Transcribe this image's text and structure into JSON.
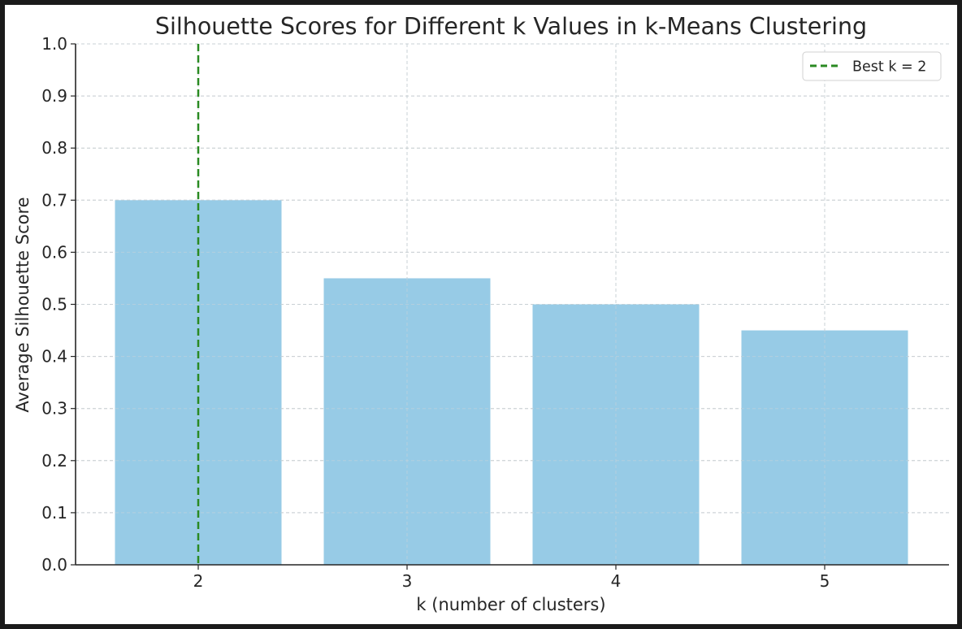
{
  "chart_data": {
    "type": "bar",
    "title": "Silhouette Scores for Different k Values in k-Means Clustering",
    "xlabel": "k (number of clusters)",
    "ylabel": "Average Silhouette Score",
    "categories": [
      "2",
      "3",
      "4",
      "5"
    ],
    "values": [
      0.7,
      0.55,
      0.5,
      0.45
    ],
    "ylim": [
      0.0,
      1.0
    ],
    "yticks": [
      "0.0",
      "0.1",
      "0.2",
      "0.3",
      "0.4",
      "0.5",
      "0.6",
      "0.7",
      "0.8",
      "0.9",
      "1.0"
    ],
    "grid": true,
    "bar_color": "#97cbe6",
    "vline": {
      "x": "2",
      "label": "Best k = 2",
      "color": "#2a8a22",
      "style": "dashed"
    },
    "legend_position": "top-right"
  }
}
